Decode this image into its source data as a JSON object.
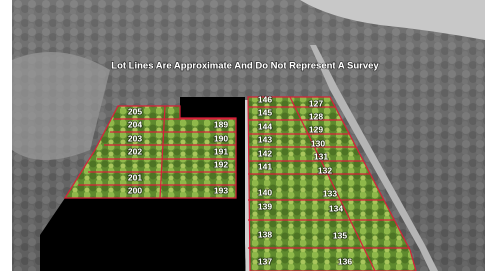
{
  "caption": "Lot Lines Are Approximate And Do Not Represent A Survey",
  "lots": [
    "205",
    "204",
    "203",
    "202",
    "201",
    "200",
    "189",
    "190",
    "191",
    "192",
    "193",
    "146",
    "145",
    "144",
    "143",
    "142",
    "141",
    "140",
    "139",
    "138",
    "137",
    "127",
    "128",
    "129",
    "130",
    "131",
    "132",
    "133",
    "134",
    "135",
    "136"
  ]
}
